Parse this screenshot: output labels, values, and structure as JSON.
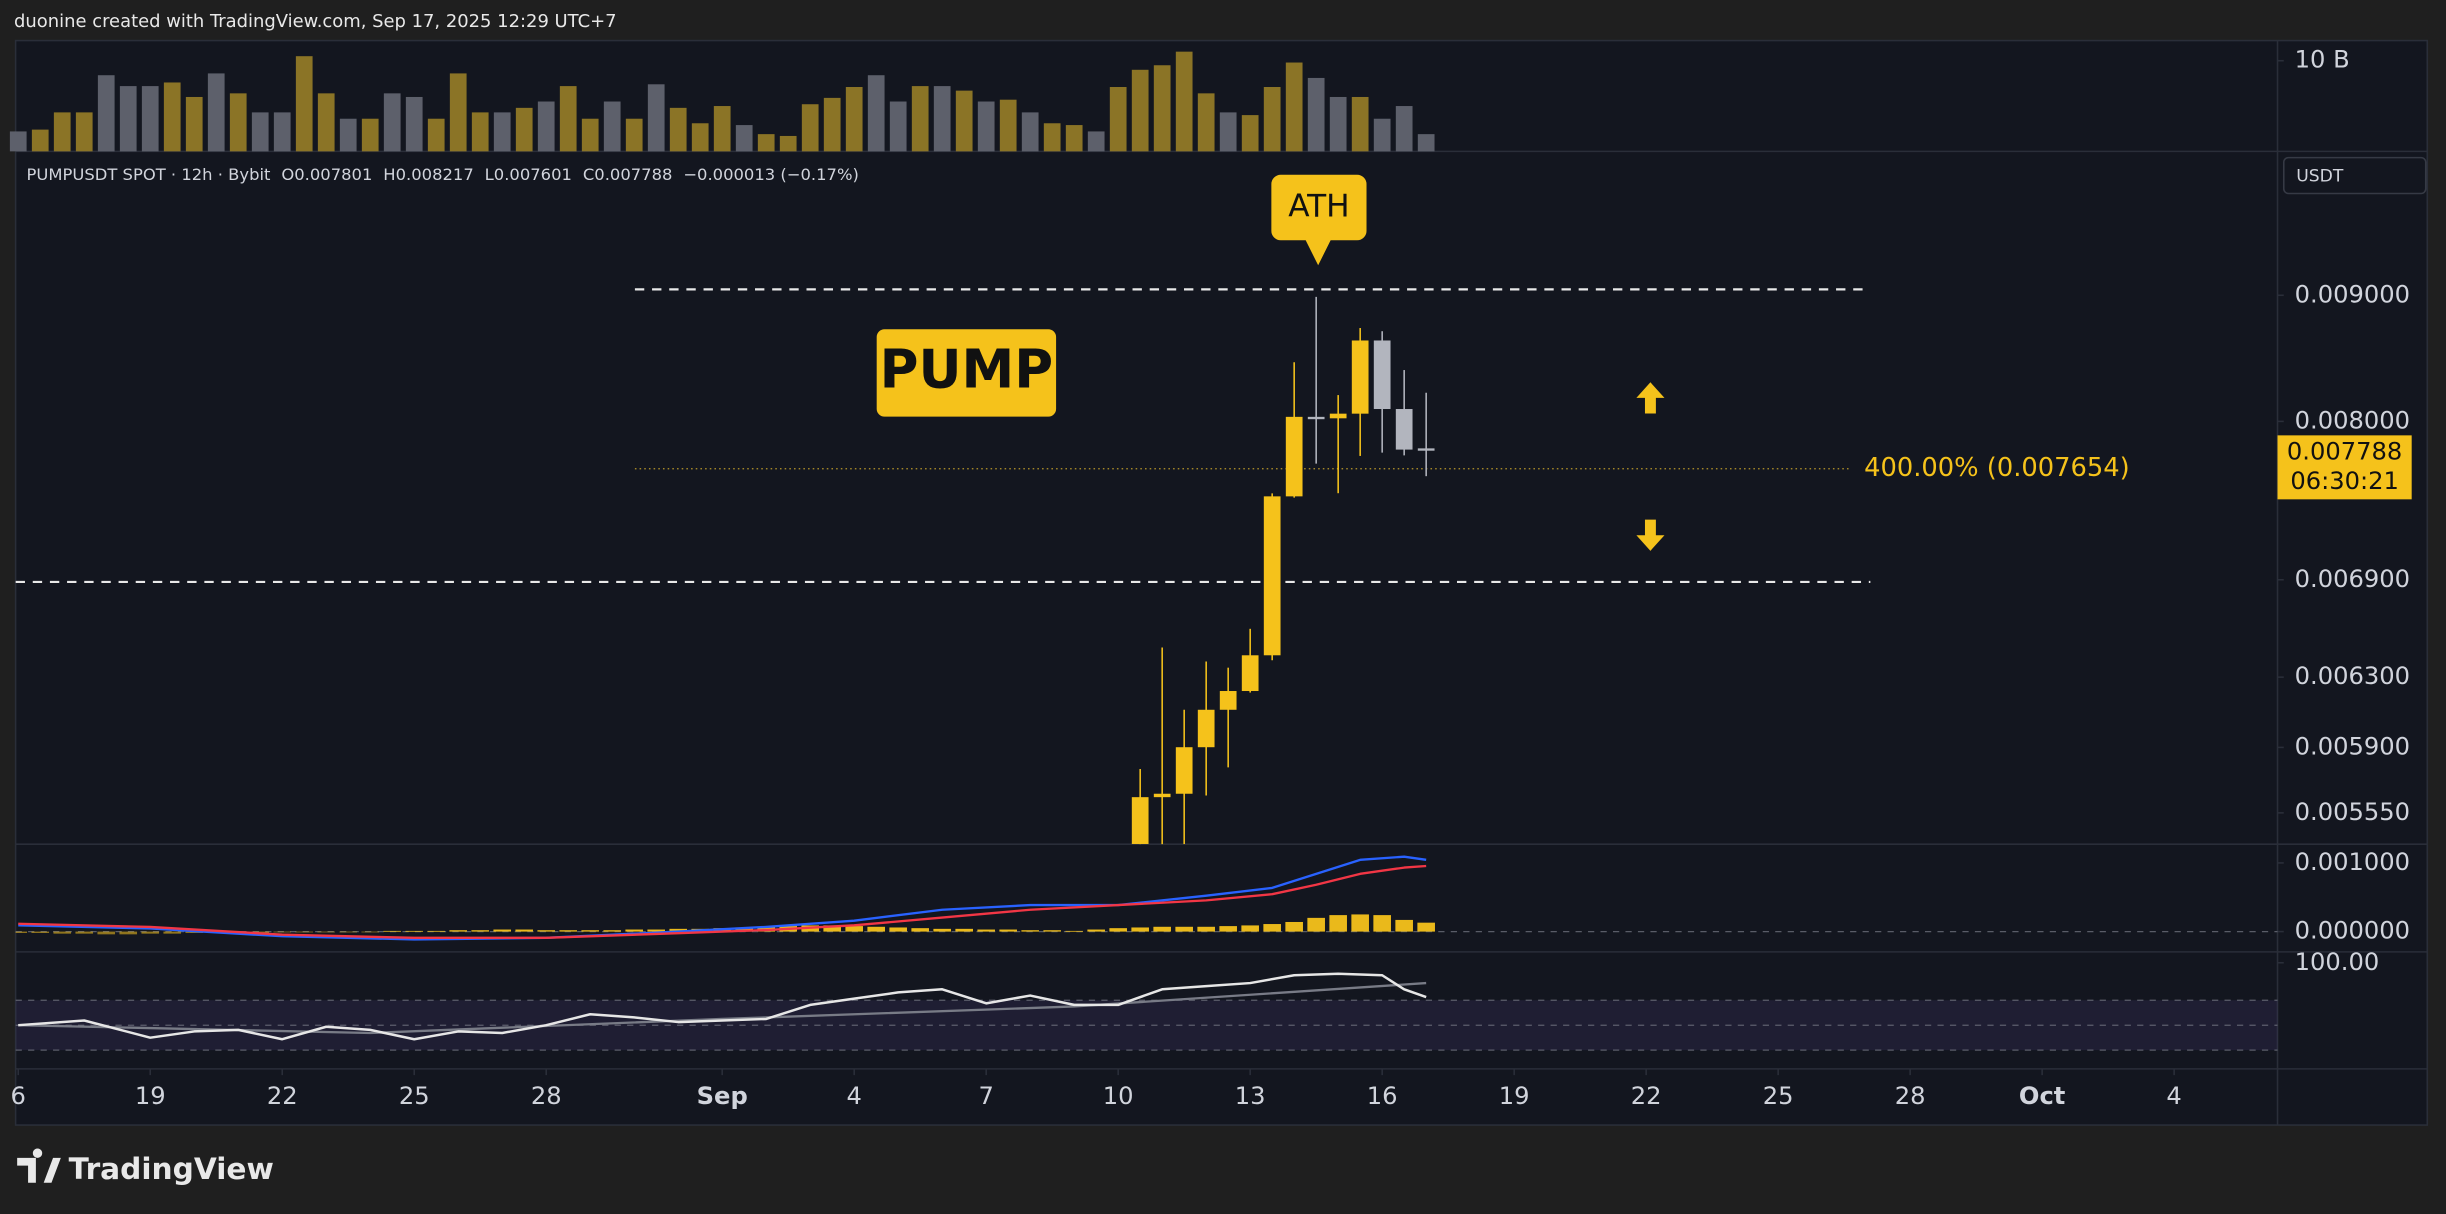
{
  "header": {
    "caption": "duonine created with TradingView.com, Sep 17, 2025 12:29 UTC+7",
    "logo": "TradingView"
  },
  "chart_data": [
    {
      "type": "candlestick",
      "symbol": "PUMPUSDT SPOT · 12h · Bybit",
      "ohlc_labels": [
        "O",
        "H",
        "L",
        "C"
      ],
      "change": "−0.000013 (−0.17%)",
      "currency": "USDT",
      "countdown": "06:30:21",
      "annotations": [
        "PUMP",
        "ATH"
      ],
      "x": [
        9.5,
        10,
        10.5,
        11,
        11.5,
        12,
        12.5,
        13,
        13.5,
        14,
        14.5,
        15,
        15.5,
        16
      ],
      "open": [
        0.005391,
        0.005632,
        0.00565,
        0.005901,
        0.006111,
        0.006219,
        0.00643,
        0.007459,
        0.008034,
        0.008023,
        0.008058,
        0.008628,
        0.008093,
        0.007801
      ],
      "high": [
        0.005782,
        0.006477,
        0.006111,
        0.006393,
        0.006356,
        0.006591,
        0.00748,
        0.008454,
        0.008987,
        0.008199,
        0.008729,
        0.008703,
        0.008393,
        0.008217
      ],
      "low": [
        0.0053,
        0.0053,
        0.00539,
        0.005641,
        0.005791,
        0.00621,
        0.0064,
        0.00745,
        0.007691,
        0.007481,
        0.007746,
        0.00777,
        0.00775,
        0.007601
      ],
      "close": [
        0.005632,
        0.00565,
        0.005901,
        0.006111,
        0.006219,
        0.00643,
        0.007459,
        0.008034,
        0.008023,
        0.008058,
        0.008628,
        0.008093,
        0.007792,
        0.007788
      ],
      "up_color": "#f5c21b",
      "down_color": "#b2b5be",
      "log": true,
      "ylim": [
        0.00539,
        0.01028
      ],
      "yticks": [
        {
          "value": 0.009,
          "label": "0.009000"
        },
        {
          "value": 0.008,
          "label": "0.008000"
        },
        {
          "value": 0.0069,
          "label": "0.006900"
        },
        {
          "value": 0.0063,
          "label": "0.006300"
        },
        {
          "value": 0.0059,
          "label": "0.005900"
        },
        {
          "value": 0.00555,
          "label": "0.005550"
        }
      ],
      "xlim": [
        -16.06,
        35.35
      ],
      "xticks": [
        {
          "value": -16,
          "label": "6"
        },
        {
          "value": -13,
          "label": "19"
        },
        {
          "value": -10,
          "label": "22"
        },
        {
          "value": -7,
          "label": "25"
        },
        {
          "value": -4,
          "label": "28"
        },
        {
          "value": 0,
          "label": "Sep"
        },
        {
          "value": 3,
          "label": "4"
        },
        {
          "value": 6,
          "label": "7"
        },
        {
          "value": 9,
          "label": "10"
        },
        {
          "value": 12,
          "label": "13"
        },
        {
          "value": 15,
          "label": "16"
        },
        {
          "value": 18,
          "label": "19"
        },
        {
          "value": 21,
          "label": "22"
        },
        {
          "value": 24,
          "label": "25"
        },
        {
          "value": 27,
          "label": "28"
        },
        {
          "value": 30,
          "label": "Oct"
        },
        {
          "value": 33,
          "label": "4"
        }
      ],
      "levels": [
        0.00905,
        0.006886
      ],
      "fib": {
        "value": 0.007654,
        "label": "400.00% (0.007654)"
      }
    },
    {
      "type": "bar",
      "x": [
        -16,
        -15.5,
        -15,
        -14.5,
        -14,
        -13.5,
        -13,
        -12.5,
        -12,
        -11.5,
        -11,
        -10.5,
        -10,
        -9.5,
        -9,
        -8.5,
        -8,
        -7.5,
        -7,
        -6.5,
        -6,
        -5.5,
        -5,
        -4.5,
        -4,
        -3.5,
        -3,
        -2.5,
        -2,
        -1.5,
        -1,
        -0.5,
        0,
        0.5,
        1,
        1.5,
        2,
        2.5,
        3,
        3.5,
        4,
        4.5,
        5,
        5.5,
        6,
        6.5,
        7,
        7.5,
        8,
        8.5,
        9,
        9.5,
        10,
        10.5,
        11,
        11.5,
        12,
        12.5,
        13,
        13.5,
        14,
        14.5,
        15,
        15.5,
        16
      ],
      "values": [
        2.2,
        2.4,
        4.3,
        4.3,
        8.4,
        7.2,
        7.2,
        7.6,
        6,
        8.6,
        6.4,
        4.3,
        4.3,
        10.5,
        6.4,
        3.6,
        3.6,
        6.4,
        6,
        3.6,
        8.6,
        4.3,
        4.3,
        4.8,
        5.5,
        7.2,
        3.6,
        5.5,
        3.6,
        7.4,
        4.8,
        3.1,
        5,
        2.9,
        1.9,
        1.7,
        5.2,
        5.9,
        7.1,
        8.4,
        5.5,
        7.2,
        7.2,
        6.7,
        5.5,
        5.7,
        4.3,
        3.1,
        2.9,
        2.2,
        7.1,
        9,
        9.5,
        11,
        6.4,
        4.3,
        4,
        7.1,
        9.8,
        8.1,
        6,
        6,
        3.6,
        5,
        1.9
      ],
      "colors": [
        "#5d606b",
        "#8b7426",
        "#8b7426",
        "#8b7426",
        "#5d606b",
        "#5d606b",
        "#5d606b",
        "#8b7426",
        "#8b7426",
        "#5d606b",
        "#8b7426",
        "#5d606b",
        "#5d606b",
        "#8b7426",
        "#8b7426",
        "#5d606b",
        "#8b7426",
        "#5d606b",
        "#5d606b",
        "#8b7426",
        "#8b7426",
        "#8b7426",
        "#5d606b",
        "#8b7426",
        "#5d606b",
        "#8b7426",
        "#8b7426",
        "#5d606b",
        "#8b7426",
        "#5d606b",
        "#8b7426",
        "#8b7426",
        "#8b7426",
        "#5d606b",
        "#8b7426",
        "#8b7426",
        "#8b7426",
        "#8b7426",
        "#8b7426",
        "#5d606b",
        "#5d606b",
        "#8b7426",
        "#5d606b",
        "#8b7426",
        "#5d606b",
        "#8b7426",
        "#5d606b",
        "#8b7426",
        "#8b7426",
        "#5d606b",
        "#8b7426",
        "#8b7426",
        "#8b7426",
        "#8b7426",
        "#8b7426",
        "#5d606b",
        "#8b7426",
        "#8b7426",
        "#8b7426",
        "#5d606b",
        "#5d606b",
        "#8b7426",
        "#5d606b",
        "#5d606b",
        "#5d606b"
      ],
      "ylim": [
        0,
        13.6
      ],
      "yticks": [
        {
          "value": 10,
          "label": "10 B"
        }
      ]
    },
    {
      "type": "line",
      "ylim": [
        -0.000295,
        0.001273
      ],
      "yticks": [
        {
          "value": 0.001,
          "label": "0.001000"
        },
        {
          "value": 0,
          "label": "0.000000"
        }
      ],
      "baseline": 0,
      "series": [
        {
          "style": "histogram",
          "color": "#f5c21b",
          "x": [
            -16,
            -15.5,
            -15,
            -14.5,
            -14,
            -13.5,
            -13,
            -12.5,
            -12,
            -11.5,
            -11,
            -10.5,
            -10,
            -9.5,
            -9,
            -8.5,
            -8,
            -7.5,
            -7,
            -6.5,
            -6,
            -5.5,
            -5,
            -4.5,
            -4,
            -3.5,
            -3,
            -2.5,
            -2,
            -1.5,
            -1,
            -0.5,
            0,
            0.5,
            1,
            1.5,
            2,
            2.5,
            3,
            3.5,
            4,
            4.5,
            5,
            5.5,
            6,
            6.5,
            7,
            7.5,
            8,
            8.5,
            9,
            9.5,
            10,
            10.5,
            11,
            11.5,
            12,
            12.5,
            13,
            13.5,
            14,
            14.5,
            15,
            15.5,
            16
          ],
          "values": [
            -2e-05,
            -2e-05,
            -3e-05,
            -3e-05,
            -4e-05,
            -4e-05,
            -3e-05,
            -3e-05,
            -2e-05,
            -2e-05,
            -2e-05,
            -2e-05,
            -1e-05,
            -1e-05,
            -1e-05,
            -1e-05,
            -1e-05,
            1e-05,
            1e-05,
            1e-05,
            2e-05,
            2e-05,
            3e-05,
            3e-05,
            2e-05,
            2e-05,
            2e-05,
            2e-05,
            3e-05,
            3e-05,
            4e-05,
            4e-05,
            5e-05,
            6e-05,
            7e-05,
            8e-05,
            9e-05,
            9e-05,
            8e-05,
            7e-05,
            6e-05,
            5e-05,
            4e-05,
            4e-05,
            3e-05,
            3e-05,
            2e-05,
            2e-05,
            1e-05,
            3e-05,
            5e-05,
            6e-05,
            7e-05,
            7e-05,
            7e-05,
            8e-05,
            9e-05,
            0.00011,
            0.00014,
            0.0002,
            0.00024,
            0.00025,
            0.00024,
            0.00017,
            0.00013
          ]
        },
        {
          "color": "#2962ff",
          "x": [
            -16,
            -13,
            -10,
            -7,
            -4,
            -1,
            1,
            3,
            5,
            7,
            9,
            11,
            12.5,
            13.5,
            14.5,
            15.5,
            16
          ],
          "values": [
            9.1e-05,
            4.5e-05,
            -6.8e-05,
            -0.000114,
            -9.1e-05,
            0,
            6.8e-05,
            0.000159,
            0.000318,
            0.000386,
            0.000386,
            0.000523,
            0.000636,
            0.000841,
            0.001045,
            0.001091,
            0.001045
          ]
        },
        {
          "color": "#f23645",
          "x": [
            -16,
            -13,
            -10,
            -7,
            -4,
            -1,
            1,
            3,
            5,
            7,
            9,
            11,
            12.5,
            13.5,
            14.5,
            15.5,
            16
          ],
          "values": [
            0.000114,
            6.8e-05,
            -4.5e-05,
            -9.1e-05,
            -9.1e-05,
            -2.3e-05,
            2.3e-05,
            9.1e-05,
            0.000205,
            0.000318,
            0.000386,
            0.000455,
            0.000545,
            0.000682,
            0.000841,
            0.000932,
            0.000955
          ]
        }
      ]
    },
    {
      "type": "line",
      "ylim": [
        15,
        108.75
      ],
      "yticks": [
        {
          "value": 100,
          "label": "100.00"
        }
      ],
      "bands": [
        70,
        50,
        30
      ],
      "series": [
        {
          "color": "#787b86",
          "x": [
            -16,
            -8,
            0,
            8,
            16
          ],
          "values": [
            50,
            43.75,
            55,
            65,
            83.75
          ]
        },
        {
          "color": "#e6e6e6",
          "x": [
            -16,
            -14.5,
            -13,
            -12,
            -11,
            -10,
            -9,
            -8,
            -7,
            -6,
            -5,
            -4,
            -3,
            -2,
            -1,
            0,
            1,
            2,
            3,
            4,
            5,
            6,
            7,
            8,
            9,
            10,
            11,
            12,
            13,
            14,
            15,
            15.5,
            16
          ],
          "values": [
            50,
            53.75,
            40,
            45,
            46.25,
            38.75,
            48.75,
            46.25,
            38.75,
            45,
            43.75,
            50,
            58.75,
            56.25,
            52.5,
            53.75,
            55,
            66.25,
            71.25,
            76.25,
            78.75,
            67.5,
            73.75,
            66.25,
            66.25,
            78.75,
            81.25,
            83.75,
            90,
            91.25,
            90,
            78.75,
            72.5
          ]
        }
      ]
    }
  ]
}
